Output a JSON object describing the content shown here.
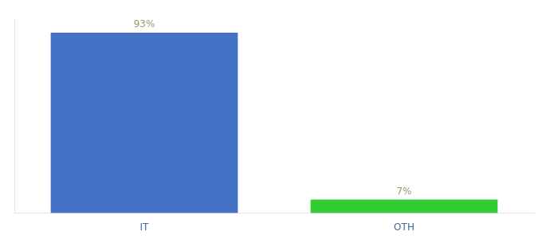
{
  "chart_data": {
    "type": "bar",
    "categories": [
      "IT",
      "OTH"
    ],
    "values": [
      93,
      7
    ],
    "value_labels": [
      "93%",
      "7%"
    ],
    "colors": [
      "#4472c4",
      "#33cc33"
    ],
    "ylim": [
      0,
      100
    ],
    "data_labels": true,
    "tick_labels": "x",
    "grid": false
  }
}
